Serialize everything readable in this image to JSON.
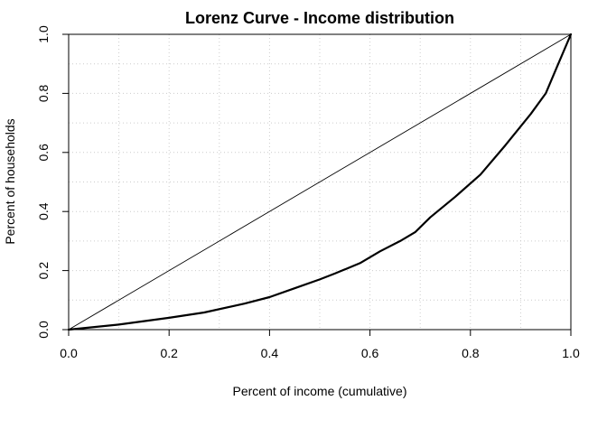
{
  "chart_data": {
    "type": "line",
    "title": "Lorenz Curve - Income distribution",
    "xlabel": "Percent of income (cumulative)",
    "ylabel": "Percent of households",
    "xlim": [
      0,
      1
    ],
    "ylim": [
      0,
      1
    ],
    "xticks": [
      "0.0",
      "0.2",
      "0.4",
      "0.6",
      "0.8",
      "1.0"
    ],
    "yticks": [
      "0.0",
      "0.2",
      "0.4",
      "0.6",
      "0.8",
      "1.0"
    ],
    "grid": true,
    "series": [
      {
        "color": "#000000",
        "x": [
          0.0,
          0.1,
          0.2,
          0.27,
          0.35,
          0.4,
          0.45,
          0.5,
          0.53,
          0.58,
          0.62,
          0.66,
          0.69,
          0.72,
          0.77,
          0.82,
          0.87,
          0.92,
          0.95,
          0.97,
          1.0
        ],
        "y": [
          0.0,
          0.017,
          0.04,
          0.058,
          0.088,
          0.11,
          0.14,
          0.17,
          0.19,
          0.225,
          0.265,
          0.3,
          0.33,
          0.38,
          0.45,
          0.525,
          0.625,
          0.73,
          0.8,
          0.88,
          1.0
        ]
      },
      {
        "color": "#000000",
        "x": [
          0.0,
          1.0
        ],
        "y": [
          0.0,
          1.0
        ]
      }
    ]
  }
}
